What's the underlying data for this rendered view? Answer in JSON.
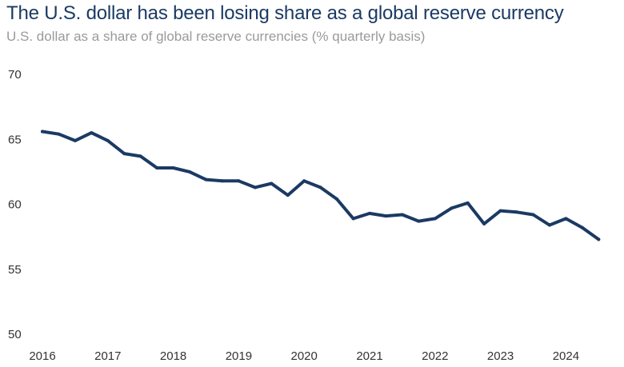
{
  "header": {
    "title": "The U.S. dollar has been losing share as a global reserve currency",
    "subtitle": "U.S. dollar as a share of global reserve currencies (% quarterly basis)"
  },
  "chart_data": {
    "type": "line",
    "title": "The U.S. dollar has been losing share as a global reserve currency",
    "subtitle": "U.S. dollar as a share of global reserve currencies (% quarterly basis)",
    "xlabel": "",
    "ylabel": "",
    "ylim": [
      50,
      70
    ],
    "yticks": [
      70,
      65,
      60,
      55,
      50
    ],
    "xticks": [
      "2016",
      "2017",
      "2018",
      "2019",
      "2020",
      "2021",
      "2022",
      "2023",
      "2024"
    ],
    "grid": false,
    "line_color": "#1b3a63",
    "series": [
      {
        "name": "",
        "x": [
          "2016 Q1",
          "2016 Q2",
          "2016 Q3",
          "2016 Q4",
          "2017 Q1",
          "2017 Q2",
          "2017 Q3",
          "2017 Q4",
          "2018 Q1",
          "2018 Q2",
          "2018 Q3",
          "2018 Q4",
          "2019 Q1",
          "2019 Q2",
          "2019 Q3",
          "2019 Q4",
          "2020 Q1",
          "2020 Q2",
          "2020 Q3",
          "2020 Q4",
          "2021 Q1",
          "2021 Q2",
          "2021 Q3",
          "2021 Q4",
          "2022 Q1",
          "2022 Q2",
          "2022 Q3",
          "2022 Q4",
          "2023 Q1",
          "2023 Q2",
          "2023 Q3",
          "2023 Q4",
          "2024 Q1",
          "2024 Q2",
          "2024 Q3"
        ],
        "values": [
          65.6,
          65.4,
          64.9,
          65.5,
          64.9,
          63.9,
          63.7,
          62.8,
          62.8,
          62.5,
          61.9,
          61.8,
          61.8,
          61.3,
          61.6,
          60.7,
          61.8,
          61.3,
          60.4,
          58.9,
          59.3,
          59.1,
          59.2,
          58.7,
          58.9,
          59.7,
          60.1,
          58.5,
          59.5,
          59.4,
          59.2,
          58.4,
          58.9,
          58.2,
          57.3
        ]
      }
    ]
  }
}
